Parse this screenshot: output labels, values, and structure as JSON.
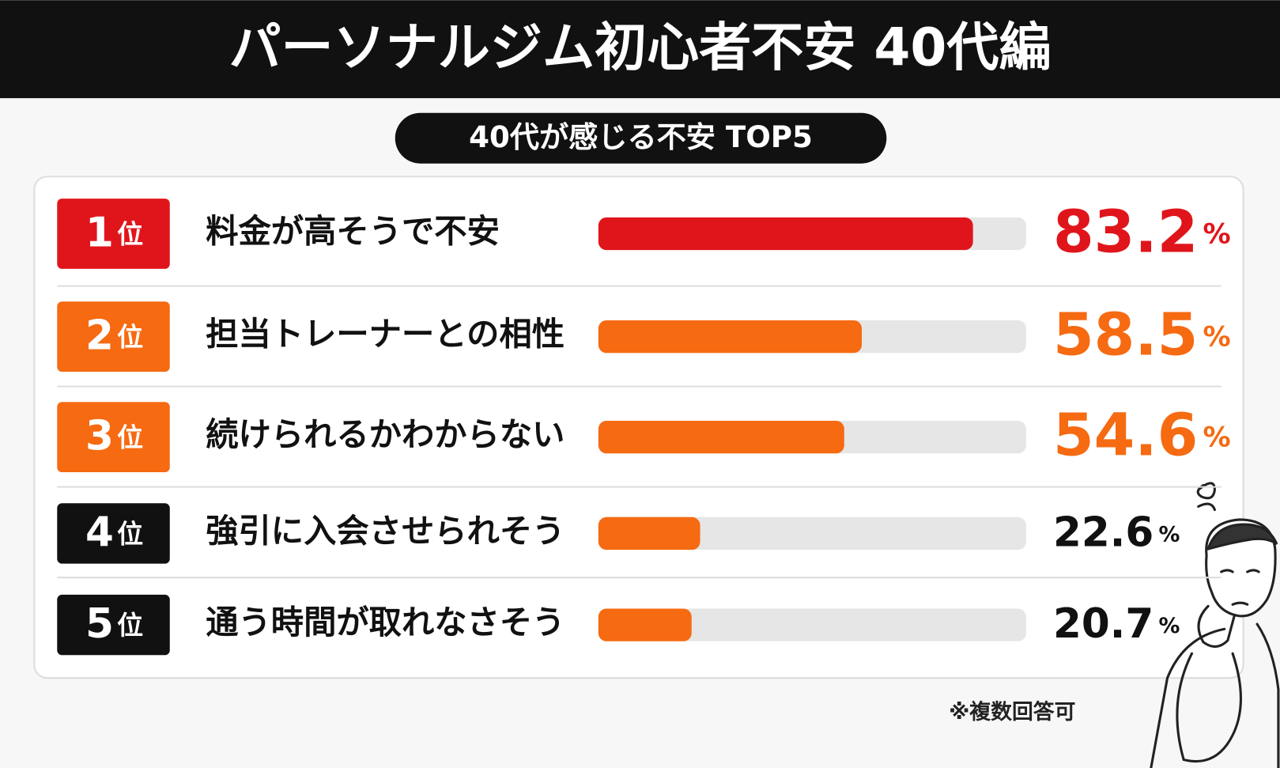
{
  "chart_data": {
    "type": "bar",
    "title": "パーソナルジム初心者不安 40代編",
    "subtitle": "40代が感じる不安 TOP5",
    "ranks": [
      {
        "number": 1,
        "unit": "位"
      },
      {
        "number": 2,
        "unit": "位"
      },
      {
        "number": 3,
        "unit": "位"
      },
      {
        "number": 4,
        "unit": "位"
      },
      {
        "number": 5,
        "unit": "位"
      }
    ],
    "categories": [
      "料金が高そうで不安",
      "担当トレーナーとの相性",
      "続けられるかわからない",
      "強引に入会させられそう",
      "通う時間が取れなさそう"
    ],
    "values": [
      83.2,
      58.5,
      54.6,
      22.6,
      20.7
    ],
    "value_unit": "%",
    "xlim": [
      0,
      95
    ],
    "bar_colors": [
      "#e0151b",
      "#f66a12",
      "#f66a12",
      "#f66a12",
      "#f66a12"
    ],
    "rank_colors": [
      "#e0151b",
      "#f66a12",
      "#f66a12",
      "#111111",
      "#111111"
    ],
    "value_colors": [
      "#e0151b",
      "#f66a12",
      "#f66a12",
      "#111111",
      "#111111"
    ],
    "footnote": "※複数回答可"
  }
}
